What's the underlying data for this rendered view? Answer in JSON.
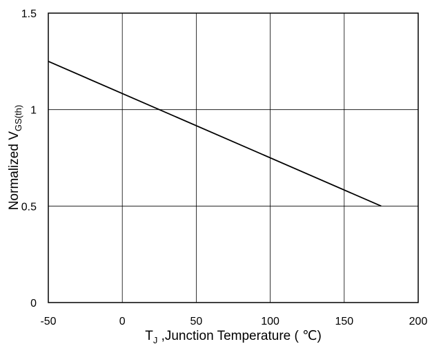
{
  "chart_data": {
    "type": "line",
    "xlabel": {
      "main": "T",
      "sub": "J",
      "rest": " ,Junction Temperature ( ℃)"
    },
    "ylabel": {
      "main": "Normalized V",
      "sub": "GS(th)"
    },
    "xlim": [
      -50,
      200
    ],
    "ylim": [
      0,
      1.5
    ],
    "x_ticks": [
      "-50",
      "0",
      "50",
      "100",
      "150",
      "200"
    ],
    "y_ticks": [
      "0",
      "0.5",
      "1",
      "1.5"
    ],
    "grid": true,
    "colors": {
      "line": "#000000",
      "grid": "#000000",
      "frame": "#000000"
    },
    "series": [
      {
        "x": [
          -50,
          175
        ],
        "y": [
          1.25,
          0.5
        ]
      }
    ]
  }
}
